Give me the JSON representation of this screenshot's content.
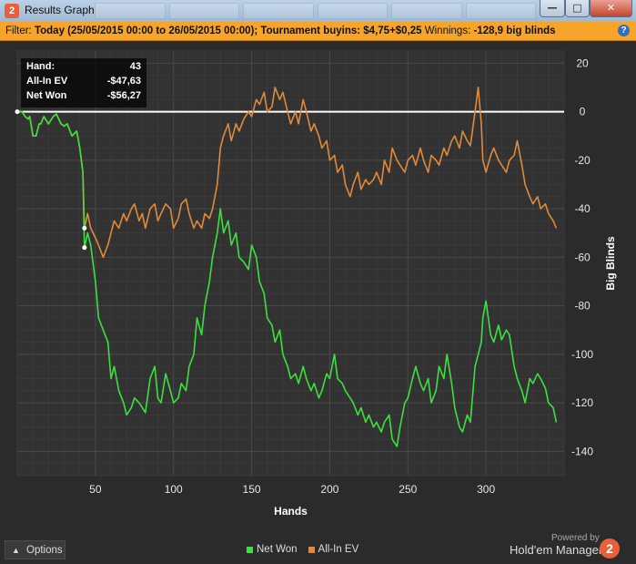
{
  "window": {
    "title": "Results Graph",
    "app_icon": "hm2-logo-icon",
    "minimize_label": "—",
    "maximize_label": "□",
    "close_label": "✕"
  },
  "filter": {
    "prefix": "Filter:",
    "text": "Today (25/05/2015 00:00 to 26/05/2015 00:00); Tournament buyins: $4,75+$0,25",
    "winnings_label": "Winnings:",
    "winnings_value": "-128,9 big blinds",
    "help_label": "?"
  },
  "infobox": {
    "hand_label": "Hand:",
    "hand_value": "43",
    "ev_label": "All-In EV",
    "ev_value": "-$47,63",
    "net_label": "Net Won",
    "net_value": "-$56,27"
  },
  "bottom": {
    "options_label": "Options",
    "powered_by": "Powered by",
    "brand": "Hold'em Manager",
    "brand_logo": "2"
  },
  "colors": {
    "net_won": "#3ee03e",
    "all_in_ev": "#e08a3a",
    "zero_line": "#ffffff",
    "grid": "#3f3f3f",
    "filter_bar": "#f6a42a"
  },
  "chart_data": {
    "type": "line",
    "xlabel": "Hands",
    "ylabel": "Big Blinds",
    "xlim": [
      0,
      350
    ],
    "ylim": [
      -150,
      25
    ],
    "xticks": [
      50,
      100,
      150,
      200,
      250,
      300
    ],
    "yticks": [
      20,
      0,
      -20,
      -40,
      -60,
      -80,
      -100,
      -120,
      -140
    ],
    "legend_position": "bottom-center",
    "grid": true,
    "highlight_hand": 43,
    "series": [
      {
        "name": "Net Won",
        "x": [
          0,
          3,
          5,
          7,
          8,
          10,
          12,
          14,
          15,
          17,
          20,
          23,
          25,
          28,
          30,
          32,
          35,
          38,
          40,
          42,
          43,
          45,
          47,
          50,
          52,
          55,
          58,
          60,
          62,
          65,
          68,
          70,
          73,
          75,
          78,
          80,
          82,
          85,
          88,
          90,
          92,
          95,
          98,
          100,
          103,
          105,
          108,
          110,
          113,
          115,
          118,
          120,
          123,
          125,
          128,
          130,
          132,
          135,
          137,
          140,
          142,
          145,
          148,
          150,
          153,
          155,
          158,
          160,
          163,
          165,
          168,
          170,
          173,
          175,
          178,
          180,
          183,
          185,
          188,
          190,
          193,
          195,
          198,
          200,
          203,
          205,
          208,
          210,
          213,
          215,
          218,
          220,
          223,
          225,
          228,
          230,
          233,
          235,
          238,
          240,
          243,
          245,
          248,
          250,
          253,
          255,
          258,
          260,
          263,
          265,
          268,
          270,
          273,
          275,
          278,
          280,
          283,
          285,
          288,
          290,
          293,
          295,
          297,
          298,
          300,
          303,
          305,
          308,
          310,
          313,
          315,
          318,
          320,
          323,
          325,
          328,
          330,
          333,
          335,
          338,
          340,
          343,
          345
        ],
        "values": [
          0,
          0,
          -2,
          -3,
          -2,
          -10,
          -10,
          -5,
          -5,
          -2,
          -5,
          -2,
          -1,
          -5,
          -6,
          -5,
          -10,
          -8,
          -15,
          -25,
          -56,
          -50,
          -55,
          -70,
          -85,
          -90,
          -95,
          -110,
          -105,
          -115,
          -120,
          -125,
          -122,
          -118,
          -120,
          -122,
          -124,
          -110,
          -105,
          -118,
          -120,
          -108,
          -115,
          -120,
          -118,
          -112,
          -115,
          -105,
          -100,
          -85,
          -92,
          -80,
          -70,
          -60,
          -50,
          -40,
          -50,
          -45,
          -55,
          -50,
          -60,
          -62,
          -65,
          -55,
          -60,
          -70,
          -75,
          -85,
          -88,
          -95,
          -90,
          -100,
          -105,
          -110,
          -108,
          -112,
          -105,
          -110,
          -115,
          -112,
          -118,
          -115,
          -108,
          -110,
          -100,
          -110,
          -112,
          -115,
          -118,
          -120,
          -125,
          -122,
          -128,
          -125,
          -130,
          -128,
          -132,
          -128,
          -125,
          -135,
          -138,
          -130,
          -120,
          -118,
          -110,
          -105,
          -112,
          -115,
          -110,
          -120,
          -115,
          -105,
          -110,
          -100,
          -112,
          -122,
          -130,
          -132,
          -125,
          -128,
          -105,
          -100,
          -95,
          -85,
          -78,
          -92,
          -95,
          -88,
          -94,
          -90,
          -92,
          -105,
          -110,
          -115,
          -120,
          -110,
          -112,
          -108,
          -110,
          -114,
          -120,
          -122,
          -128
        ]
      },
      {
        "name": "All-In EV",
        "x": [
          0,
          3,
          5,
          7,
          8,
          10,
          12,
          14,
          15,
          17,
          20,
          23,
          25,
          28,
          30,
          32,
          35,
          38,
          40,
          42,
          43,
          45,
          47,
          50,
          52,
          55,
          58,
          60,
          62,
          65,
          68,
          70,
          73,
          75,
          78,
          80,
          82,
          85,
          88,
          90,
          92,
          95,
          98,
          100,
          103,
          105,
          108,
          110,
          113,
          115,
          118,
          120,
          123,
          125,
          128,
          130,
          132,
          135,
          137,
          140,
          142,
          145,
          148,
          150,
          153,
          155,
          158,
          160,
          163,
          165,
          168,
          170,
          173,
          175,
          178,
          180,
          183,
          185,
          188,
          190,
          193,
          195,
          198,
          200,
          203,
          205,
          208,
          210,
          213,
          215,
          218,
          220,
          223,
          225,
          228,
          230,
          233,
          235,
          238,
          240,
          243,
          245,
          248,
          250,
          253,
          255,
          258,
          260,
          263,
          265,
          268,
          270,
          273,
          275,
          278,
          280,
          283,
          285,
          288,
          290,
          293,
          295,
          297,
          298,
          300,
          303,
          305,
          308,
          310,
          313,
          315,
          318,
          320,
          323,
          325,
          328,
          330,
          333,
          335,
          338,
          340,
          343,
          345
        ],
        "values": [
          0,
          0,
          -2,
          -3,
          -2,
          -10,
          -10,
          -5,
          -5,
          -2,
          -5,
          -2,
          -1,
          -5,
          -6,
          -5,
          -10,
          -8,
          -15,
          -25,
          -48,
          -42,
          -48,
          -52,
          -55,
          -60,
          -55,
          -50,
          -45,
          -48,
          -42,
          -45,
          -40,
          -38,
          -45,
          -42,
          -48,
          -40,
          -38,
          -45,
          -42,
          -38,
          -40,
          -48,
          -44,
          -38,
          -36,
          -42,
          -48,
          -45,
          -48,
          -42,
          -44,
          -40,
          -30,
          -15,
          -10,
          -5,
          -12,
          -5,
          -8,
          -3,
          0,
          -2,
          5,
          3,
          8,
          0,
          2,
          10,
          5,
          8,
          0,
          -5,
          0,
          -5,
          5,
          0,
          -8,
          -5,
          -10,
          -15,
          -12,
          -20,
          -18,
          -25,
          -22,
          -30,
          -35,
          -30,
          -25,
          -32,
          -28,
          -30,
          -28,
          -25,
          -30,
          -20,
          -25,
          -15,
          -20,
          -22,
          -25,
          -20,
          -18,
          -22,
          -15,
          -20,
          -25,
          -18,
          -20,
          -22,
          -15,
          -18,
          -12,
          -10,
          -15,
          -8,
          -12,
          -14,
          0,
          10,
          -5,
          -20,
          -25,
          -18,
          -15,
          -20,
          -22,
          -25,
          -20,
          -18,
          -12,
          -22,
          -30,
          -35,
          -38,
          -35,
          -40,
          -38,
          -42,
          -45,
          -48
        ]
      }
    ]
  }
}
